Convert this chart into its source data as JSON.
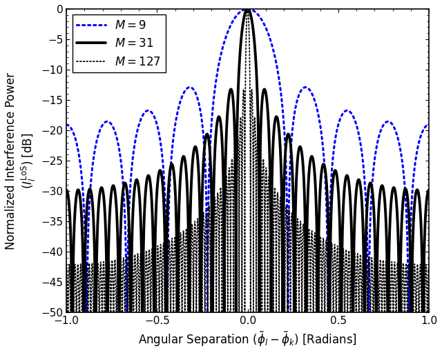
{
  "M_values": [
    9,
    31,
    127
  ],
  "x_min": -1.0,
  "x_max": 1.0,
  "y_min": -50,
  "y_max": 0,
  "x_ticks": [
    -1,
    -0.5,
    0,
    0.5,
    1
  ],
  "y_ticks": [
    0,
    -5,
    -10,
    -15,
    -20,
    -25,
    -30,
    -35,
    -40,
    -45,
    -50
  ],
  "xlabel": "Angular Separation ($\\tilde{\\phi}_l - \\tilde{\\phi}_k$) [Radians]",
  "ylabel": "Normalized Interference Power\n$(I_l^{\\mathrm{LoS}})$ [dB]",
  "legend_labels": [
    "$M = 9$",
    "$M = 31$",
    "$M = 127$"
  ],
  "colors": [
    "#0000FF",
    "#000000",
    "#000000"
  ],
  "linestyles": [
    "dotted",
    "solid",
    "dotted"
  ],
  "linewidths": [
    2.2,
    2.8,
    1.3
  ],
  "dot_sizes": [
    3.5,
    3.0,
    1.5
  ],
  "n_points": 50000,
  "background_color": "#ffffff",
  "figsize": [
    6.4,
    5.12
  ],
  "dpi": 100,
  "legend_fontsize": 12,
  "axis_fontsize": 12,
  "tick_fontsize": 11
}
